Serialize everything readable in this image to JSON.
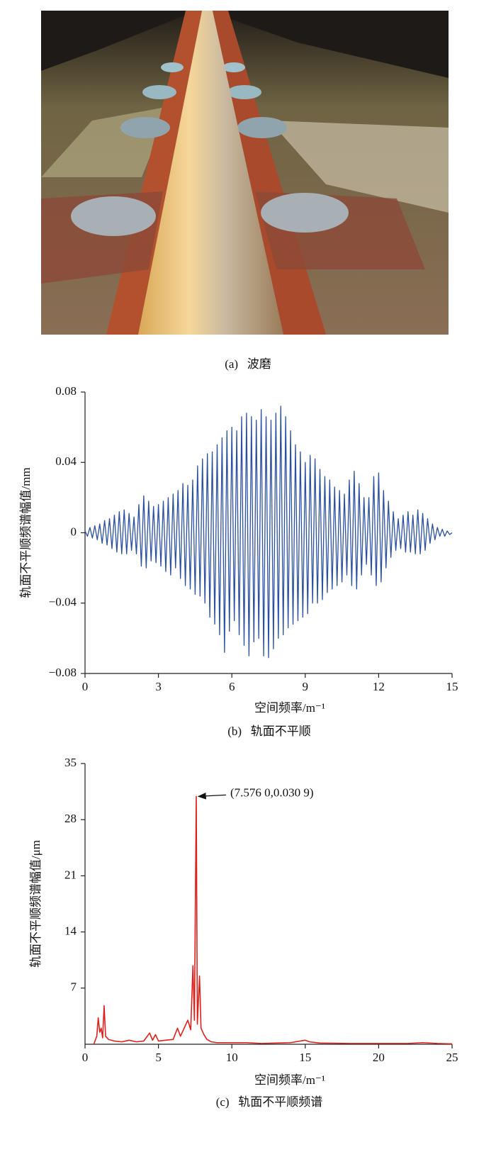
{
  "panel_a": {
    "caption": "(a)   波磨"
  },
  "chart_data": [
    {
      "type": "line",
      "caption": "(b)   轨面不平顺",
      "xlabel": "空间频率/m⁻¹",
      "ylabel": "轨面不平顺频谱幅值/mm",
      "color": "#2b50a0",
      "xlim": [
        0,
        15
      ],
      "xticks": [
        0,
        3,
        6,
        9,
        12,
        15
      ],
      "ylim": [
        -0.08,
        0.08
      ],
      "yticks": [
        {
          "value": -0.08,
          "label": "−0.08"
        },
        {
          "value": -0.04,
          "label": "−0.04"
        },
        0,
        0.04,
        0.08
      ],
      "x": [
        0,
        0.1,
        0.2,
        0.3,
        0.4,
        0.5,
        0.6,
        0.7,
        0.8,
        0.9,
        1,
        1.1,
        1.2,
        1.3,
        1.4,
        1.5,
        1.6,
        1.7,
        1.8,
        1.9,
        2,
        2.1,
        2.2,
        2.3,
        2.4,
        2.5,
        2.6,
        2.7,
        2.8,
        2.9,
        3,
        3.1,
        3.2,
        3.3,
        3.4,
        3.5,
        3.6,
        3.7,
        3.8,
        3.9,
        4,
        4.1,
        4.2,
        4.3,
        4.4,
        4.5,
        4.6,
        4.7,
        4.8,
        4.9,
        5,
        5.1,
        5.2,
        5.3,
        5.4,
        5.5,
        5.6,
        5.7,
        5.8,
        5.9,
        6,
        6.1,
        6.2,
        6.3,
        6.4,
        6.5,
        6.6,
        6.7,
        6.8,
        6.9,
        7,
        7.1,
        7.2,
        7.3,
        7.4,
        7.5,
        7.6,
        7.7,
        7.8,
        7.9,
        8,
        8.1,
        8.2,
        8.3,
        8.4,
        8.5,
        8.6,
        8.7,
        8.8,
        8.9,
        9,
        9.1,
        9.2,
        9.3,
        9.4,
        9.5,
        9.6,
        9.7,
        9.8,
        9.9,
        10,
        10.1,
        10.2,
        10.3,
        10.4,
        10.5,
        10.6,
        10.7,
        10.8,
        10.9,
        11,
        11.1,
        11.2,
        11.3,
        11.4,
        11.5,
        11.6,
        11.7,
        11.8,
        11.9,
        12,
        12.1,
        12.2,
        12.3,
        12.4,
        12.5,
        12.6,
        12.7,
        12.8,
        12.9,
        13,
        13.1,
        13.2,
        13.3,
        13.4,
        13.5,
        13.6,
        13.7,
        13.8,
        13.9,
        14,
        14.1,
        14.2,
        14.3,
        14.4,
        14.5,
        14.6,
        14.7,
        14.8,
        14.9,
        15
      ],
      "values": [
        0.001,
        -0.002,
        0.003,
        -0.003,
        0.004,
        -0.004,
        0.005,
        -0.006,
        0.007,
        -0.007,
        0.008,
        -0.009,
        0.01,
        -0.011,
        0.012,
        -0.012,
        0.013,
        -0.012,
        0.011,
        -0.01,
        0.009,
        -0.012,
        0.016,
        -0.019,
        0.021,
        -0.02,
        0.018,
        -0.016,
        0.015,
        -0.017,
        0.016,
        -0.019,
        0.018,
        -0.022,
        0.02,
        -0.024,
        0.022,
        -0.02,
        0.024,
        -0.026,
        0.028,
        -0.03,
        0.027,
        -0.032,
        0.03,
        -0.035,
        0.038,
        -0.036,
        0.042,
        -0.04,
        0.045,
        -0.048,
        0.046,
        -0.052,
        0.05,
        -0.058,
        0.054,
        -0.068,
        0.058,
        -0.056,
        0.06,
        -0.05,
        0.058,
        -0.058,
        0.066,
        -0.064,
        0.068,
        -0.07,
        0.066,
        -0.062,
        0.064,
        -0.06,
        0.07,
        -0.07,
        0.066,
        -0.071,
        0.064,
        -0.066,
        0.068,
        -0.06,
        0.072,
        -0.058,
        0.066,
        -0.054,
        0.058,
        -0.052,
        0.05,
        -0.05,
        0.046,
        -0.048,
        0.04,
        -0.046,
        0.044,
        -0.04,
        0.042,
        -0.04,
        0.036,
        -0.038,
        0.032,
        -0.034,
        0.03,
        -0.032,
        0.026,
        -0.03,
        0.024,
        -0.028,
        0.022,
        -0.024,
        0.03,
        -0.03,
        0.035,
        -0.032,
        0.028,
        -0.024,
        0.02,
        -0.018,
        0.02,
        -0.024,
        0.032,
        -0.03,
        0.034,
        -0.028,
        0.024,
        -0.02,
        0.018,
        -0.014,
        0.012,
        -0.01,
        0.008,
        -0.009,
        0.01,
        -0.011,
        0.012,
        -0.011,
        0.01,
        -0.012,
        0.013,
        -0.012,
        0.011,
        -0.01,
        0.008,
        -0.006,
        0.005,
        -0.004,
        0.003,
        -0.002,
        0.002,
        -0.002,
        0.001,
        -0.001,
        0
      ]
    },
    {
      "type": "line",
      "caption": "(c)   轨面不平顺频谱",
      "xlabel": "空间频率/m⁻¹",
      "ylabel": "轨面不平顺频谱幅值/μm",
      "color": "#e0201b",
      "annotation": "(7.576 0,0.030 9)",
      "xlim": [
        0,
        25
      ],
      "xticks": [
        0,
        5,
        10,
        15,
        20,
        25
      ],
      "ylim": [
        0,
        35
      ],
      "yticks": [
        7,
        14,
        21,
        28,
        35
      ],
      "x": [
        0.6,
        0.8,
        0.9,
        1,
        1.1,
        1.2,
        1.3,
        1.4,
        1.6,
        2,
        2.5,
        3,
        3.5,
        4,
        4.4,
        4.6,
        4.8,
        5,
        5.5,
        6,
        6.3,
        6.5,
        6.8,
        7,
        7.2,
        7.35,
        7.45,
        7.576,
        7.65,
        7.8,
        7.9,
        8.1,
        8.3,
        8.6,
        9,
        10,
        11,
        12,
        13,
        14,
        15,
        15.3,
        16,
        18,
        20,
        22,
        23,
        24,
        25
      ],
      "values": [
        0,
        1,
        3.3,
        1.5,
        2,
        0.8,
        4.8,
        1,
        0.6,
        0.4,
        0.3,
        0.5,
        0.3,
        0.4,
        1.4,
        0.5,
        1.2,
        0.4,
        0.5,
        0.6,
        2,
        1,
        2.2,
        3,
        1.8,
        9.8,
        3,
        30.9,
        2.5,
        8.5,
        2,
        1.2,
        0.6,
        0.3,
        0.2,
        0.2,
        0.2,
        0.1,
        0.15,
        0.2,
        0.5,
        0.3,
        0.15,
        0.1,
        0.1,
        0.1,
        0.2,
        0.1,
        0.05
      ]
    }
  ]
}
